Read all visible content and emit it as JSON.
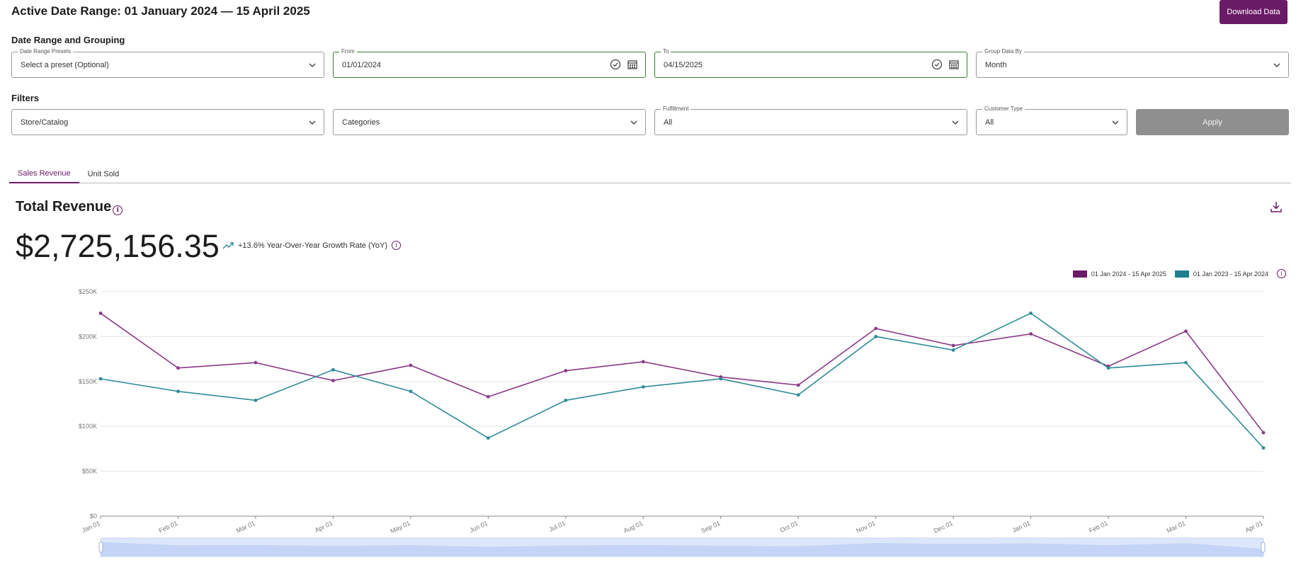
{
  "header": {
    "title": "Active Date Range: 01 January 2024 — 15 April 2025",
    "download_label": "Download Data"
  },
  "date_section": {
    "label": "Date Range and Grouping",
    "presets": {
      "legend": "Date Range Presets",
      "value": "Select a preset (Optional)"
    },
    "from": {
      "legend": "From",
      "value": "01/01/2024"
    },
    "to": {
      "legend": "To",
      "value": "04/15/2025"
    },
    "group": {
      "legend": "Group Data By",
      "value": "Month"
    }
  },
  "filters": {
    "label": "Filters",
    "store": {
      "value": "Store/Catalog"
    },
    "categories": {
      "value": "Categories"
    },
    "fulfillment": {
      "legend": "Fulfillment",
      "value": "All"
    },
    "customer_type": {
      "legend": "Customer Type",
      "value": "All"
    },
    "apply_label": "Apply"
  },
  "tabs": [
    {
      "label": "Sales Revenue",
      "active": true
    },
    {
      "label": "Unit Sold",
      "active": false
    }
  ],
  "card": {
    "title": "Total Revenue",
    "value": "$2,725,156.35",
    "growth_text": "+13.6% Year-Over-Year Growth Rate (YoY)"
  },
  "colors": {
    "accent": "#6a1b67",
    "series1": "#8a3a87",
    "series2": "#2e8b98",
    "green": "#3d7a35"
  },
  "chart_data": {
    "type": "line",
    "categories": [
      "Jan 01",
      "Feb 01",
      "Mar 01",
      "Apr 01",
      "May 01",
      "Jun 01",
      "Jul 01",
      "Aug 01",
      "Sep 01",
      "Oct 01",
      "Nov 01",
      "Dec 01",
      "Jan 01",
      "Feb 01",
      "Mar 01",
      "Apr 01"
    ],
    "series": [
      {
        "name": "01 Jan 2024 - 15 Apr 2025",
        "color": "#8a3a87",
        "values": [
          226000,
          165000,
          171000,
          151000,
          168000,
          133000,
          162000,
          172000,
          155000,
          146000,
          209000,
          190000,
          203000,
          167000,
          206000,
          93000
        ]
      },
      {
        "name": "01 Jan 2023 - 15 Apr 2024",
        "color": "#2e8b98",
        "values": [
          153000,
          139000,
          129000,
          163000,
          139000,
          87000,
          129000,
          144000,
          153000,
          135000,
          200000,
          185000,
          226000,
          165000,
          171000,
          76000
        ]
      }
    ],
    "y_ticks": [
      "$0",
      "$50K",
      "$100K",
      "$150K",
      "$200K",
      "$250K"
    ],
    "ylim": [
      0,
      250000
    ],
    "grid": true,
    "legend_position": "top-right"
  }
}
